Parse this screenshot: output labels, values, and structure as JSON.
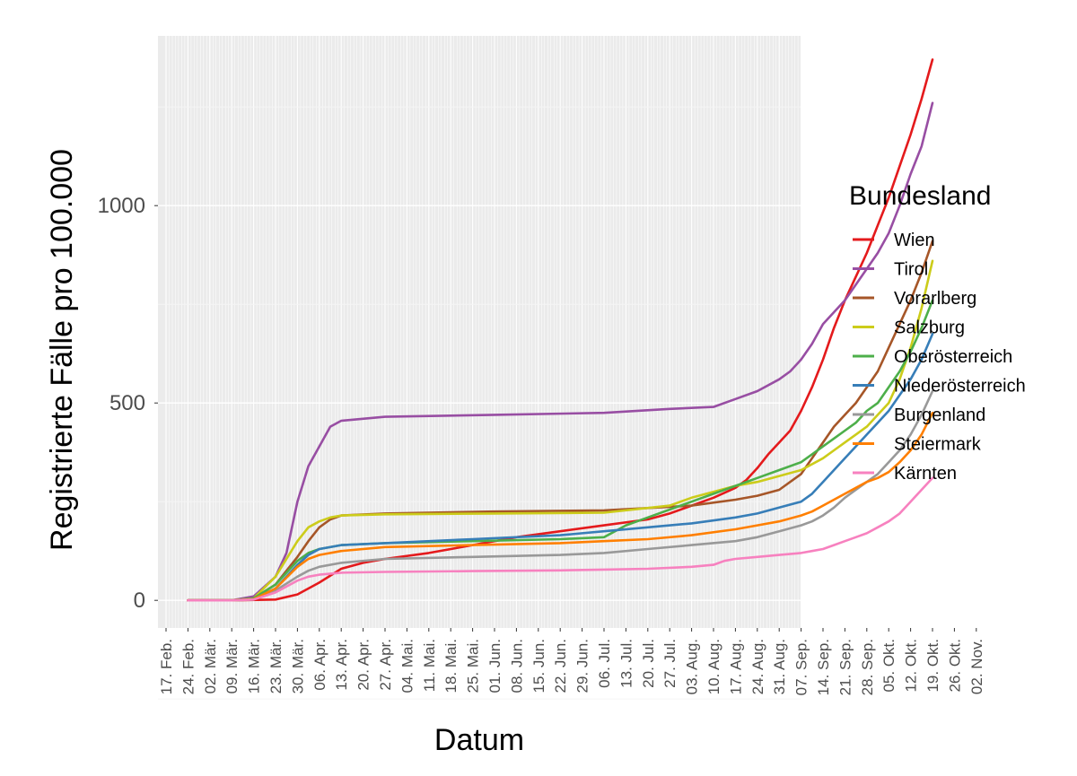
{
  "chart_data": {
    "type": "line",
    "xlabel": "Datum",
    "ylabel": "Registrierte Fälle pro 100.000",
    "x_ticks": [
      "17. Feb.",
      "24. Feb.",
      "02. Mär.",
      "09. Mär.",
      "16. Mär.",
      "23. Mär.",
      "30. Mär.",
      "06. Apr.",
      "13. Apr.",
      "20. Apr.",
      "27. Apr.",
      "04. Mai.",
      "11. Mai.",
      "18. Mai.",
      "25. Mai.",
      "01. Jun.",
      "08. Jun.",
      "15. Jun.",
      "22. Jun.",
      "29. Jun.",
      "06. Jul.",
      "13. Jul.",
      "20. Jul.",
      "27. Jul.",
      "03. Aug.",
      "10. Aug.",
      "17. Aug.",
      "24. Aug.",
      "31. Aug.",
      "07. Sep.",
      "14. Sep.",
      "21. Sep.",
      "28. Sep.",
      "05. Okt.",
      "12. Okt.",
      "19. Okt.",
      "26. Okt.",
      "02. Nov."
    ],
    "y_ticks": [
      0,
      500,
      1000
    ],
    "ylim": [
      -70,
      1430
    ],
    "grid": true,
    "legend": {
      "title": "Bundesland",
      "position": "right"
    },
    "series": [
      {
        "name": "Wien",
        "color": "#E41A1C",
        "points": [
          [
            1,
            0
          ],
          [
            3,
            0
          ],
          [
            5,
            2
          ],
          [
            6,
            15
          ],
          [
            7,
            45
          ],
          [
            8,
            80
          ],
          [
            9,
            95
          ],
          [
            10,
            105
          ],
          [
            12,
            120
          ],
          [
            14,
            140
          ],
          [
            16,
            160
          ],
          [
            18,
            175
          ],
          [
            20,
            190
          ],
          [
            22,
            205
          ],
          [
            23,
            220
          ],
          [
            24,
            240
          ],
          [
            25,
            260
          ],
          [
            26,
            285
          ],
          [
            26.5,
            305
          ],
          [
            27,
            335
          ],
          [
            27.5,
            370
          ],
          [
            28,
            400
          ],
          [
            28.5,
            430
          ],
          [
            29,
            480
          ],
          [
            29.5,
            540
          ],
          [
            30,
            610
          ],
          [
            30.5,
            690
          ],
          [
            31,
            760
          ],
          [
            31.5,
            820
          ],
          [
            32,
            880
          ],
          [
            32.5,
            950
          ],
          [
            33,
            1020
          ],
          [
            33.5,
            1100
          ],
          [
            34,
            1180
          ],
          [
            34.5,
            1270
          ],
          [
            35,
            1370
          ]
        ]
      },
      {
        "name": "Tirol",
        "color": "#984EA3",
        "points": [
          [
            1,
            0
          ],
          [
            3,
            0
          ],
          [
            4,
            10
          ],
          [
            5,
            60
          ],
          [
            5.5,
            120
          ],
          [
            6,
            250
          ],
          [
            6.5,
            340
          ],
          [
            7,
            390
          ],
          [
            7.5,
            440
          ],
          [
            8,
            455
          ],
          [
            10,
            465
          ],
          [
            15,
            470
          ],
          [
            20,
            475
          ],
          [
            23,
            485
          ],
          [
            25,
            490
          ],
          [
            26,
            510
          ],
          [
            27,
            530
          ],
          [
            28,
            560
          ],
          [
            28.5,
            580
          ],
          [
            29,
            610
          ],
          [
            29.5,
            650
          ],
          [
            30,
            700
          ],
          [
            30.5,
            730
          ],
          [
            31,
            760
          ],
          [
            31.5,
            800
          ],
          [
            32,
            840
          ],
          [
            32.5,
            880
          ],
          [
            33,
            930
          ],
          [
            33.5,
            1000
          ],
          [
            34,
            1080
          ],
          [
            34.5,
            1150
          ],
          [
            35,
            1260
          ]
        ]
      },
      {
        "name": "Vorarlberg",
        "color": "#A65628",
        "points": [
          [
            1,
            0
          ],
          [
            3,
            0
          ],
          [
            4,
            5
          ],
          [
            5,
            40
          ],
          [
            6,
            110
          ],
          [
            6.5,
            150
          ],
          [
            7,
            185
          ],
          [
            7.5,
            205
          ],
          [
            8,
            215
          ],
          [
            10,
            220
          ],
          [
            15,
            225
          ],
          [
            20,
            228
          ],
          [
            24,
            240
          ],
          [
            26,
            255
          ],
          [
            27,
            265
          ],
          [
            28,
            280
          ],
          [
            29,
            320
          ],
          [
            30,
            400
          ],
          [
            30.5,
            440
          ],
          [
            31,
            470
          ],
          [
            31.5,
            500
          ],
          [
            32,
            540
          ],
          [
            32.5,
            580
          ],
          [
            33,
            640
          ],
          [
            33.5,
            700
          ],
          [
            34,
            760
          ],
          [
            34.5,
            830
          ],
          [
            35,
            910
          ]
        ]
      },
      {
        "name": "Salzburg",
        "color": "#CCCC1A",
        "points": [
          [
            1,
            0
          ],
          [
            3,
            0
          ],
          [
            4,
            5
          ],
          [
            5,
            60
          ],
          [
            6,
            150
          ],
          [
            6.5,
            185
          ],
          [
            7,
            200
          ],
          [
            7.5,
            210
          ],
          [
            8,
            215
          ],
          [
            10,
            218
          ],
          [
            15,
            220
          ],
          [
            20,
            222
          ],
          [
            23,
            240
          ],
          [
            24,
            260
          ],
          [
            26,
            290
          ],
          [
            27,
            300
          ],
          [
            28,
            315
          ],
          [
            29,
            330
          ],
          [
            30,
            360
          ],
          [
            30.5,
            380
          ],
          [
            31,
            400
          ],
          [
            31.5,
            420
          ],
          [
            32,
            440
          ],
          [
            32.5,
            470
          ],
          [
            33,
            500
          ],
          [
            33.5,
            560
          ],
          [
            34,
            640
          ],
          [
            34.5,
            740
          ],
          [
            35,
            860
          ]
        ]
      },
      {
        "name": "Oberösterreich",
        "color": "#4DAF4A",
        "points": [
          [
            1,
            0
          ],
          [
            3,
            0
          ],
          [
            4,
            5
          ],
          [
            5,
            40
          ],
          [
            6,
            100
          ],
          [
            6.5,
            120
          ],
          [
            7,
            130
          ],
          [
            8,
            140
          ],
          [
            10,
            145
          ],
          [
            14,
            150
          ],
          [
            18,
            155
          ],
          [
            20,
            160
          ],
          [
            21,
            190
          ],
          [
            22,
            210
          ],
          [
            24,
            250
          ],
          [
            25,
            270
          ],
          [
            26,
            290
          ],
          [
            27,
            310
          ],
          [
            28,
            330
          ],
          [
            29,
            350
          ],
          [
            29.5,
            370
          ],
          [
            30,
            390
          ],
          [
            30.5,
            410
          ],
          [
            31,
            430
          ],
          [
            31.5,
            450
          ],
          [
            32,
            480
          ],
          [
            32.5,
            500
          ],
          [
            33,
            540
          ],
          [
            33.5,
            580
          ],
          [
            34,
            630
          ],
          [
            34.5,
            690
          ],
          [
            35,
            760
          ]
        ]
      },
      {
        "name": "Niederösterreich",
        "color": "#377EB8",
        "points": [
          [
            1,
            0
          ],
          [
            3,
            0
          ],
          [
            4,
            3
          ],
          [
            5,
            30
          ],
          [
            6,
            90
          ],
          [
            6.5,
            115
          ],
          [
            7,
            130
          ],
          [
            8,
            140
          ],
          [
            10,
            145
          ],
          [
            14,
            155
          ],
          [
            18,
            165
          ],
          [
            20,
            175
          ],
          [
            22,
            185
          ],
          [
            24,
            195
          ],
          [
            26,
            210
          ],
          [
            27,
            220
          ],
          [
            28,
            235
          ],
          [
            29,
            250
          ],
          [
            29.5,
            270
          ],
          [
            30,
            300
          ],
          [
            30.5,
            330
          ],
          [
            31,
            360
          ],
          [
            31.5,
            390
          ],
          [
            32,
            420
          ],
          [
            32.5,
            450
          ],
          [
            33,
            480
          ],
          [
            33.5,
            520
          ],
          [
            34,
            560
          ],
          [
            34.5,
            610
          ],
          [
            35,
            675
          ]
        ]
      },
      {
        "name": "Burgenland",
        "color": "#999999",
        "points": [
          [
            1,
            0
          ],
          [
            3,
            0
          ],
          [
            4,
            2
          ],
          [
            5,
            25
          ],
          [
            6,
            60
          ],
          [
            6.5,
            75
          ],
          [
            7,
            85
          ],
          [
            8,
            95
          ],
          [
            10,
            105
          ],
          [
            14,
            110
          ],
          [
            18,
            115
          ],
          [
            20,
            120
          ],
          [
            22,
            130
          ],
          [
            24,
            140
          ],
          [
            26,
            150
          ],
          [
            27,
            160
          ],
          [
            28,
            175
          ],
          [
            29,
            190
          ],
          [
            29.5,
            200
          ],
          [
            30,
            215
          ],
          [
            30.5,
            235
          ],
          [
            31,
            260
          ],
          [
            31.5,
            280
          ],
          [
            32,
            300
          ],
          [
            32.5,
            320
          ],
          [
            33,
            350
          ],
          [
            33.5,
            380
          ],
          [
            34,
            420
          ],
          [
            34.5,
            470
          ],
          [
            35,
            530
          ]
        ]
      },
      {
        "name": "Steiermark",
        "color": "#FF7F00",
        "points": [
          [
            1,
            0
          ],
          [
            3,
            0
          ],
          [
            4,
            3
          ],
          [
            5,
            30
          ],
          [
            6,
            85
          ],
          [
            6.5,
            105
          ],
          [
            7,
            115
          ],
          [
            8,
            125
          ],
          [
            10,
            135
          ],
          [
            14,
            140
          ],
          [
            18,
            145
          ],
          [
            20,
            150
          ],
          [
            22,
            155
          ],
          [
            24,
            165
          ],
          [
            26,
            180
          ],
          [
            27,
            190
          ],
          [
            28,
            200
          ],
          [
            29,
            215
          ],
          [
            29.5,
            225
          ],
          [
            30,
            240
          ],
          [
            30.5,
            255
          ],
          [
            31,
            270
          ],
          [
            31.5,
            285
          ],
          [
            32,
            300
          ],
          [
            32.5,
            310
          ],
          [
            33,
            325
          ],
          [
            33.5,
            350
          ],
          [
            34,
            380
          ],
          [
            34.5,
            420
          ],
          [
            35,
            475
          ]
        ]
      },
      {
        "name": "Kärnten",
        "color": "#F781BF",
        "points": [
          [
            1,
            0
          ],
          [
            3,
            0
          ],
          [
            4,
            2
          ],
          [
            5,
            20
          ],
          [
            6,
            50
          ],
          [
            6.5,
            60
          ],
          [
            7,
            65
          ],
          [
            8,
            70
          ],
          [
            10,
            72
          ],
          [
            14,
            74
          ],
          [
            18,
            76
          ],
          [
            20,
            78
          ],
          [
            22,
            80
          ],
          [
            24,
            85
          ],
          [
            25,
            90
          ],
          [
            25.5,
            100
          ],
          [
            26,
            105
          ],
          [
            27,
            110
          ],
          [
            28,
            115
          ],
          [
            29,
            120
          ],
          [
            29.5,
            125
          ],
          [
            30,
            130
          ],
          [
            30.5,
            140
          ],
          [
            31,
            150
          ],
          [
            31.5,
            160
          ],
          [
            32,
            170
          ],
          [
            32.5,
            185
          ],
          [
            33,
            200
          ],
          [
            33.5,
            220
          ],
          [
            34,
            250
          ],
          [
            34.5,
            280
          ],
          [
            35,
            310
          ]
        ]
      }
    ]
  }
}
